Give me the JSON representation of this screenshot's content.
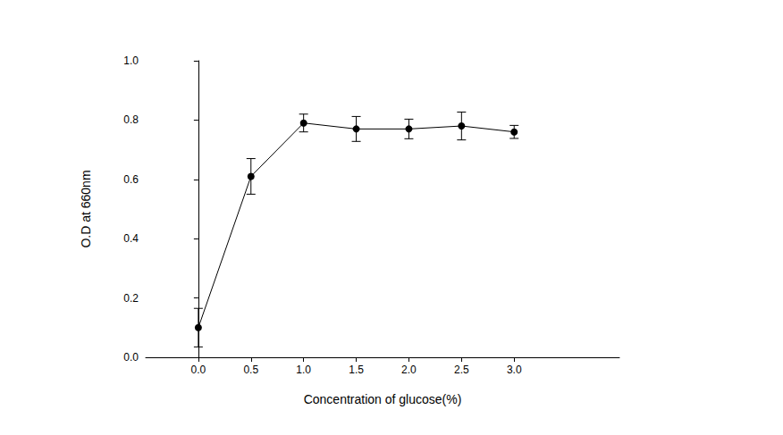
{
  "chart_data": {
    "type": "line",
    "xlabel": "Concentration of glucose(%)",
    "ylabel": "O.D at 660nm",
    "x": [
      0,
      0.5,
      1.0,
      1.5,
      2.0,
      2.5,
      3.0
    ],
    "values": [
      0.1,
      0.61,
      0.79,
      0.77,
      0.77,
      0.78,
      0.76
    ],
    "errors": [
      0.065,
      0.06,
      0.03,
      0.042,
      0.033,
      0.047,
      0.022
    ],
    "color": "#000000",
    "marker": "circle",
    "line_style": "solid",
    "xlim": [
      -0.5,
      4.0
    ],
    "xticks": [
      {
        "value": 0,
        "label": "0.0"
      },
      {
        "value": 0.5,
        "label": "0.5"
      },
      {
        "value": 1.0,
        "label": "1.0"
      },
      {
        "value": 1.5,
        "label": "1.5"
      },
      {
        "value": 2.0,
        "label": "2.0"
      },
      {
        "value": 2.5,
        "label": "2.5"
      },
      {
        "value": 3.0,
        "label": "3.0"
      }
    ],
    "ylim": [
      0,
      1.0
    ],
    "yticks": [
      {
        "value": 0,
        "label": "0.0"
      },
      {
        "value": 0.2,
        "label": "0.2"
      },
      {
        "value": 0.4,
        "label": "0.4"
      },
      {
        "value": 0.6,
        "label": "0.6"
      },
      {
        "value": 0.8,
        "label": "0.8"
      },
      {
        "value": 1.0,
        "label": "1.0"
      }
    ],
    "grid": false
  }
}
